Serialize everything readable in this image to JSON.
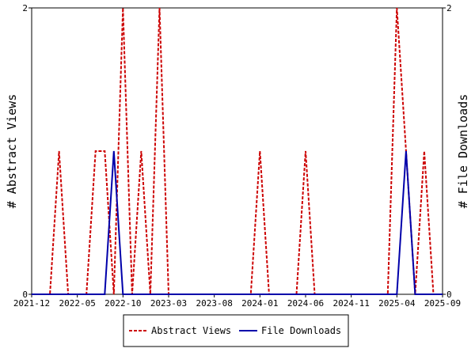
{
  "chart_data": {
    "type": "line",
    "title": "",
    "xlabel": "",
    "ylabel_left": "# Abstract Views",
    "ylabel_right": "# File Downloads",
    "x_ticks": [
      "2021-12",
      "2022-05",
      "2022-10",
      "2023-03",
      "2023-08",
      "2024-01",
      "2024-06",
      "2024-11",
      "2025-04",
      "2025-09"
    ],
    "x_range": [
      "2021-12",
      "2025-09"
    ],
    "ylim_left": [
      0,
      2
    ],
    "ylim_right": [
      0,
      2
    ],
    "y_ticks_left": [
      "0",
      "2"
    ],
    "y_ticks_right": [
      "0",
      "2"
    ],
    "grid": false,
    "legend_position": "bottom-center",
    "series": [
      {
        "name": "Abstract Views",
        "color": "#cc0000",
        "style": "dashed",
        "x": [
          "2021-12",
          "2022-01",
          "2022-02",
          "2022-03",
          "2022-04",
          "2022-05",
          "2022-06",
          "2022-07",
          "2022-08",
          "2022-09",
          "2022-10",
          "2022-11",
          "2022-12",
          "2023-01",
          "2023-02",
          "2023-03",
          "2023-04",
          "2023-05",
          "2023-06",
          "2023-07",
          "2023-08",
          "2023-09",
          "2023-10",
          "2023-11",
          "2023-12",
          "2024-01",
          "2024-02",
          "2024-03",
          "2024-04",
          "2024-05",
          "2024-06",
          "2024-07",
          "2024-08",
          "2024-09",
          "2024-10",
          "2024-11",
          "2024-12",
          "2025-01",
          "2025-02",
          "2025-03",
          "2025-04",
          "2025-05",
          "2025-06",
          "2025-07",
          "2025-08",
          "2025-09"
        ],
        "values": [
          0,
          0,
          0,
          1,
          0,
          0,
          0,
          1,
          1,
          0,
          2,
          0,
          1,
          0,
          2,
          0,
          0,
          0,
          0,
          0,
          0,
          0,
          0,
          0,
          0,
          1,
          0,
          0,
          0,
          0,
          1,
          0,
          0,
          0,
          0,
          0,
          0,
          0,
          0,
          0,
          2,
          1,
          0,
          1,
          0,
          0
        ]
      },
      {
        "name": "File Downloads",
        "color": "#0000aa",
        "style": "solid",
        "x": [
          "2021-12",
          "2022-01",
          "2022-02",
          "2022-03",
          "2022-04",
          "2022-05",
          "2022-06",
          "2022-07",
          "2022-08",
          "2022-09",
          "2022-10",
          "2022-11",
          "2022-12",
          "2023-01",
          "2023-02",
          "2023-03",
          "2023-04",
          "2023-05",
          "2023-06",
          "2023-07",
          "2023-08",
          "2023-09",
          "2023-10",
          "2023-11",
          "2023-12",
          "2024-01",
          "2024-02",
          "2024-03",
          "2024-04",
          "2024-05",
          "2024-06",
          "2024-07",
          "2024-08",
          "2024-09",
          "2024-10",
          "2024-11",
          "2024-12",
          "2025-01",
          "2025-02",
          "2025-03",
          "2025-04",
          "2025-05",
          "2025-06",
          "2025-07",
          "2025-08",
          "2025-09"
        ],
        "values": [
          0,
          0,
          0,
          0,
          0,
          0,
          0,
          0,
          0,
          1,
          0,
          0,
          0,
          0,
          0,
          0,
          0,
          0,
          0,
          0,
          0,
          0,
          0,
          0,
          0,
          0,
          0,
          0,
          0,
          0,
          0,
          0,
          0,
          0,
          0,
          0,
          0,
          0,
          0,
          0,
          0,
          1,
          0,
          0,
          0,
          0
        ]
      }
    ]
  }
}
